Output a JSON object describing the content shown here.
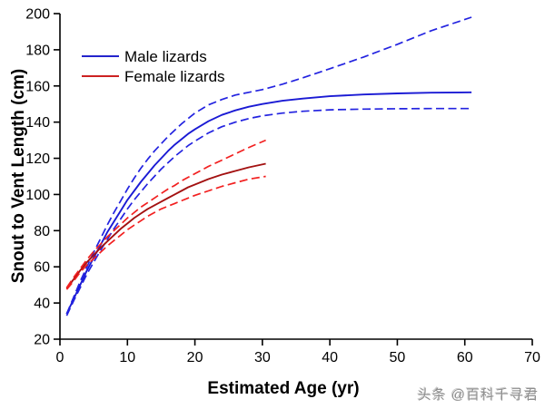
{
  "chart_data": {
    "type": "line",
    "title": "",
    "xlabel": "Estimated Age (yr)",
    "ylabel": "Snout to Vent Length (cm)",
    "xlim": [
      0,
      70
    ],
    "ylim": [
      20,
      200
    ],
    "x_ticks": [
      0,
      10,
      20,
      30,
      40,
      50,
      60,
      70
    ],
    "y_ticks": [
      20,
      40,
      60,
      80,
      100,
      120,
      140,
      160,
      180,
      200
    ],
    "grid": false,
    "axis_color": "#000000",
    "legend_position": "upper-left-inside",
    "legend": {
      "items": [
        {
          "label": "Male lizards",
          "color": "#2424cc"
        },
        {
          "label": "Female lizards",
          "color": "#cc2222"
        }
      ]
    },
    "series": [
      {
        "name": "Male mean",
        "slug": "male-mean-line",
        "style": "solid",
        "color": "#1a1ad4",
        "points": [
          [
            1,
            34
          ],
          [
            2,
            42
          ],
          [
            3,
            50
          ],
          [
            4,
            58
          ],
          [
            5,
            65
          ],
          [
            6,
            72
          ],
          [
            7,
            79
          ],
          [
            8,
            85
          ],
          [
            9,
            91
          ],
          [
            10,
            97
          ],
          [
            11,
            102
          ],
          [
            12,
            107
          ],
          [
            13,
            111.5
          ],
          [
            14,
            116
          ],
          [
            15,
            120
          ],
          [
            16,
            124
          ],
          [
            17,
            127.5
          ],
          [
            18,
            130.5
          ],
          [
            19,
            133.5
          ],
          [
            20,
            136
          ],
          [
            22,
            140.5
          ],
          [
            24,
            144
          ],
          [
            26,
            146.5
          ],
          [
            28,
            148.5
          ],
          [
            30,
            150
          ],
          [
            33,
            151.8
          ],
          [
            36,
            153
          ],
          [
            40,
            154.3
          ],
          [
            45,
            155.3
          ],
          [
            50,
            155.9
          ],
          [
            55,
            156.3
          ],
          [
            61,
            156.5
          ]
        ]
      },
      {
        "name": "Male upper bound",
        "slug": "male-upper-dashed-line",
        "style": "dashed",
        "color": "#2323e0",
        "points": [
          [
            1,
            34
          ],
          [
            2,
            43
          ],
          [
            3,
            52
          ],
          [
            4,
            60
          ],
          [
            5,
            68
          ],
          [
            6,
            75.5
          ],
          [
            7,
            83
          ],
          [
            8,
            90
          ],
          [
            9,
            96.5
          ],
          [
            10,
            103
          ],
          [
            11,
            109
          ],
          [
            12,
            114.5
          ],
          [
            13,
            119.5
          ],
          [
            14,
            124
          ],
          [
            15,
            128
          ],
          [
            16,
            132
          ],
          [
            17,
            135.5
          ],
          [
            18,
            139
          ],
          [
            19,
            142
          ],
          [
            20,
            145
          ],
          [
            22,
            149.5
          ],
          [
            24,
            152.5
          ],
          [
            26,
            155
          ],
          [
            28,
            156.5
          ],
          [
            30,
            158
          ],
          [
            33,
            161
          ],
          [
            36,
            164.5
          ],
          [
            40,
            169.5
          ],
          [
            45,
            176
          ],
          [
            50,
            183
          ],
          [
            55,
            190.5
          ],
          [
            61,
            198
          ]
        ]
      },
      {
        "name": "Male lower bound",
        "slug": "male-lower-dashed-line",
        "style": "dashed",
        "color": "#2323e0",
        "points": [
          [
            1,
            33
          ],
          [
            2,
            41
          ],
          [
            3,
            48.5
          ],
          [
            4,
            56
          ],
          [
            5,
            62.5
          ],
          [
            6,
            69
          ],
          [
            7,
            75
          ],
          [
            8,
            81
          ],
          [
            9,
            86.5
          ],
          [
            10,
            92
          ],
          [
            11,
            97
          ],
          [
            12,
            101.5
          ],
          [
            13,
            106
          ],
          [
            14,
            110
          ],
          [
            15,
            114
          ],
          [
            16,
            117.5
          ],
          [
            17,
            121
          ],
          [
            18,
            124
          ],
          [
            19,
            127
          ],
          [
            20,
            129.5
          ],
          [
            22,
            134
          ],
          [
            24,
            137.5
          ],
          [
            26,
            140
          ],
          [
            28,
            142
          ],
          [
            30,
            143.5
          ],
          [
            33,
            145
          ],
          [
            36,
            146
          ],
          [
            40,
            146.8
          ],
          [
            45,
            147.2
          ],
          [
            50,
            147.4
          ],
          [
            55,
            147.5
          ],
          [
            61,
            147.5
          ]
        ]
      },
      {
        "name": "Female mean",
        "slug": "female-mean-line",
        "style": "solid",
        "color": "#a31111",
        "points": [
          [
            1,
            48
          ],
          [
            2,
            53
          ],
          [
            3,
            58
          ],
          [
            4,
            62.5
          ],
          [
            5,
            66.5
          ],
          [
            6,
            70.5
          ],
          [
            7,
            74
          ],
          [
            8,
            77.5
          ],
          [
            9,
            81
          ],
          [
            10,
            84
          ],
          [
            11,
            87
          ],
          [
            12,
            89.5
          ],
          [
            13,
            92
          ],
          [
            14,
            94
          ],
          [
            15,
            96
          ],
          [
            16,
            98
          ],
          [
            17,
            100
          ],
          [
            18,
            102
          ],
          [
            19,
            104
          ],
          [
            20,
            105.5
          ],
          [
            22,
            108.5
          ],
          [
            24,
            111
          ],
          [
            26,
            113
          ],
          [
            28,
            115
          ],
          [
            30.5,
            117
          ]
        ]
      },
      {
        "name": "Female upper bound",
        "slug": "female-upper-dashed-line",
        "style": "dashed",
        "color": "#f22020",
        "points": [
          [
            1,
            48.5
          ],
          [
            2,
            54
          ],
          [
            3,
            59
          ],
          [
            4,
            64
          ],
          [
            5,
            68.5
          ],
          [
            6,
            72.5
          ],
          [
            7,
            76.5
          ],
          [
            8,
            80
          ],
          [
            9,
            83.5
          ],
          [
            10,
            87
          ],
          [
            11,
            90
          ],
          [
            12,
            93
          ],
          [
            13,
            95.5
          ],
          [
            14,
            98
          ],
          [
            15,
            100.5
          ],
          [
            16,
            103
          ],
          [
            17,
            105
          ],
          [
            18,
            107.5
          ],
          [
            19,
            109.5
          ],
          [
            20,
            111.5
          ],
          [
            22,
            115.5
          ],
          [
            24,
            119
          ],
          [
            26,
            122.5
          ],
          [
            28,
            126
          ],
          [
            30.5,
            130
          ]
        ]
      },
      {
        "name": "Female lower bound",
        "slug": "female-lower-dashed-line",
        "style": "dashed",
        "color": "#f22020",
        "points": [
          [
            1,
            47.5
          ],
          [
            2,
            52
          ],
          [
            3,
            57
          ],
          [
            4,
            61
          ],
          [
            5,
            64.5
          ],
          [
            6,
            68
          ],
          [
            7,
            71.5
          ],
          [
            8,
            74.5
          ],
          [
            9,
            77.5
          ],
          [
            10,
            80.5
          ],
          [
            11,
            83
          ],
          [
            12,
            85.5
          ],
          [
            13,
            88
          ],
          [
            14,
            90
          ],
          [
            15,
            92
          ],
          [
            16,
            93.5
          ],
          [
            17,
            95
          ],
          [
            18,
            96.5
          ],
          [
            19,
            98
          ],
          [
            20,
            99.5
          ],
          [
            22,
            102
          ],
          [
            24,
            104.5
          ],
          [
            26,
            106.5
          ],
          [
            28,
            108.5
          ],
          [
            30.5,
            110
          ]
        ]
      }
    ]
  },
  "watermark": {
    "text": "头条 @百科千寻君"
  }
}
